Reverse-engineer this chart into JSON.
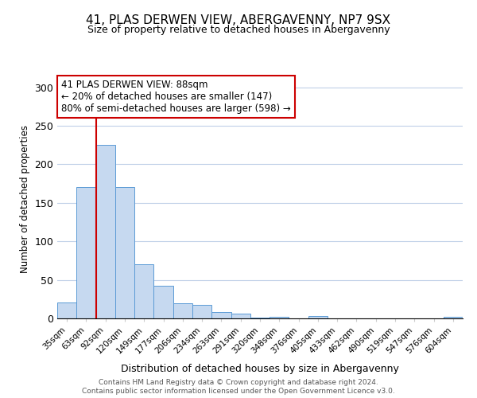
{
  "title": "41, PLAS DERWEN VIEW, ABERGAVENNY, NP7 9SX",
  "subtitle": "Size of property relative to detached houses in Abergavenny",
  "xlabel": "Distribution of detached houses by size in Abergavenny",
  "ylabel": "Number of detached properties",
  "bar_labels": [
    "35sqm",
    "63sqm",
    "92sqm",
    "120sqm",
    "149sqm",
    "177sqm",
    "206sqm",
    "234sqm",
    "263sqm",
    "291sqm",
    "320sqm",
    "348sqm",
    "376sqm",
    "405sqm",
    "433sqm",
    "462sqm",
    "490sqm",
    "519sqm",
    "547sqm",
    "576sqm",
    "604sqm"
  ],
  "bar_values": [
    21,
    170,
    225,
    171,
    70,
    42,
    20,
    18,
    8,
    6,
    1,
    2,
    0,
    3,
    0,
    0,
    0,
    0,
    0,
    0,
    2
  ],
  "bar_color": "#c6d9f0",
  "bar_edge_color": "#5b9bd5",
  "ylim": [
    0,
    310
  ],
  "yticks": [
    0,
    50,
    100,
    150,
    200,
    250,
    300
  ],
  "property_line_color": "#cc0000",
  "annotation_title": "41 PLAS DERWEN VIEW: 88sqm",
  "annotation_line1": "← 20% of detached houses are smaller (147)",
  "annotation_line2": "80% of semi-detached houses are larger (598) →",
  "annotation_box_color": "#ffffff",
  "annotation_box_edge_color": "#cc0000",
  "footer_line1": "Contains HM Land Registry data © Crown copyright and database right 2024.",
  "footer_line2": "Contains public sector information licensed under the Open Government Licence v3.0.",
  "background_color": "#ffffff",
  "grid_color": "#c0d0e8"
}
